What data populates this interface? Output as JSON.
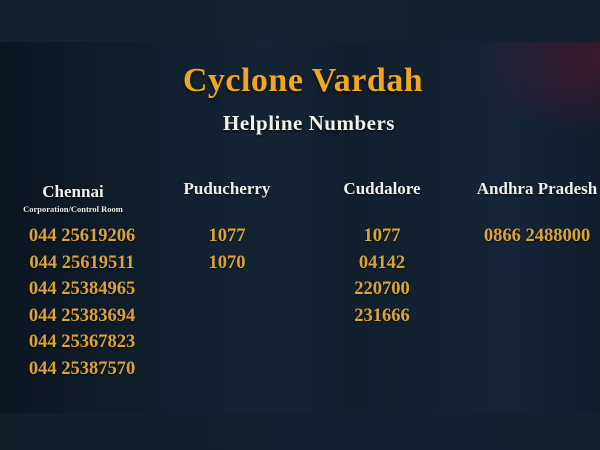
{
  "title": "Cyclone Vardah",
  "subtitle": "Helpline Numbers",
  "columns": [
    {
      "name": "Chennai",
      "sublabel": "Corporation/Control Room",
      "numbers": [
        "044 25619206",
        "044 25619511",
        "044 25384965",
        "044 25383694",
        "044 25367823",
        "044 25387570"
      ]
    },
    {
      "name": "Puducherry",
      "numbers": [
        "1077",
        "1070"
      ]
    },
    {
      "name": "Cuddalore",
      "numbers": [
        "1077",
        "04142",
        "220700",
        "231666"
      ]
    },
    {
      "name": "Andhra Pradesh",
      "numbers": [
        "0866 2488000"
      ]
    }
  ],
  "colors": {
    "title_gold": "#f0a621",
    "number_gold": "#daa33a",
    "header_white": "#f2efe8",
    "bg_top_band": "#15222f",
    "bg_main_navy": "#122130",
    "bg_bottom_band": "#112130",
    "glow_maroon": "#60162c"
  }
}
